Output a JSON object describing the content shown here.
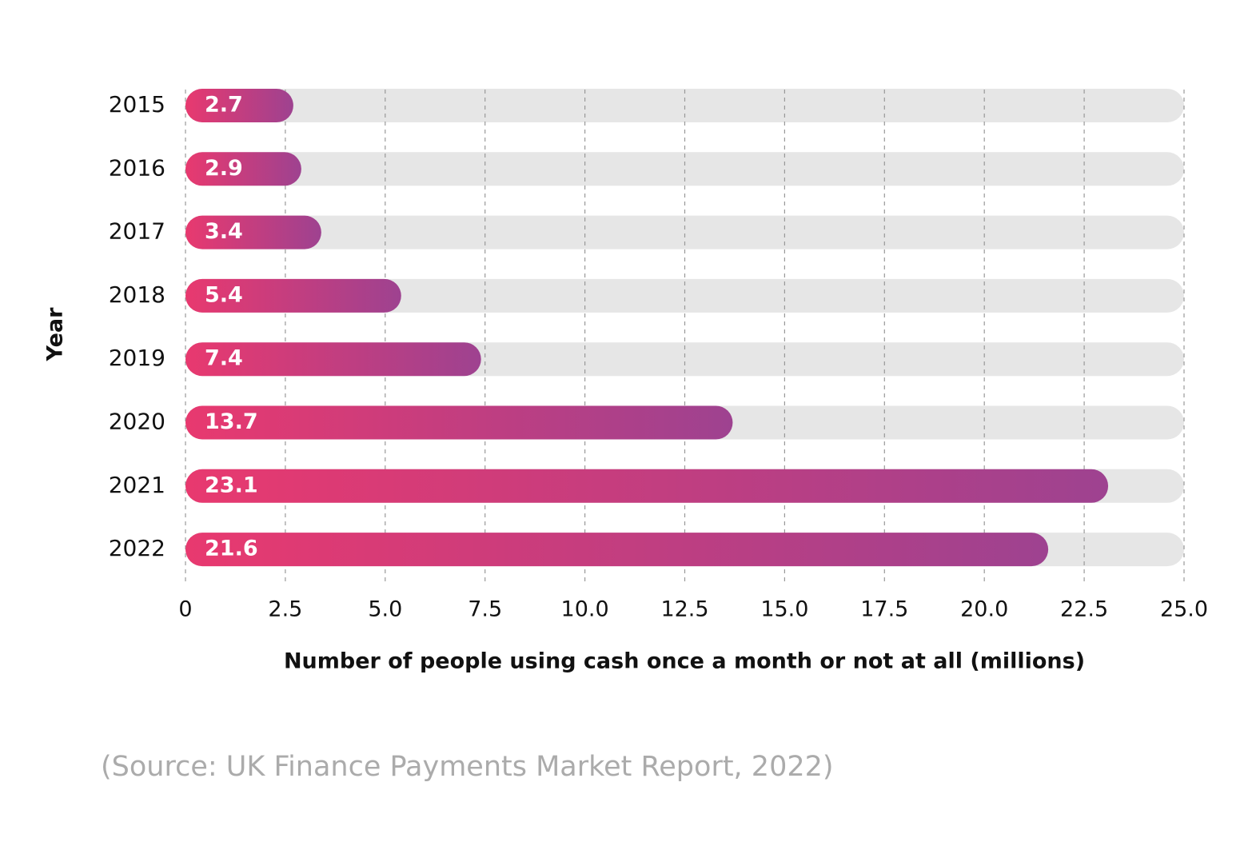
{
  "chart_data": {
    "type": "hbar",
    "y_label": "Year",
    "x_label": "Number of people using cash once a month or not at all (millions)",
    "source": "(Source: UK Finance Payments Market Report, 2022)",
    "categories": [
      "2015",
      "2016",
      "2017",
      "2018",
      "2019",
      "2020",
      "2021",
      "2022"
    ],
    "values": [
      2.7,
      2.9,
      3.4,
      5.4,
      7.4,
      13.7,
      23.1,
      21.6
    ],
    "colors": [
      "#e8396f",
      "#9e4290"
    ],
    "track_color": "#e6e6e6",
    "xlim": [
      0,
      25
    ],
    "xticks": [
      0,
      2.5,
      {
        "value": 5,
        "label": "5.0"
      },
      7.5,
      {
        "value": 10,
        "label": "10.0"
      },
      12.5,
      {
        "value": 15,
        "label": "15.0"
      },
      17.5,
      {
        "value": 20,
        "label": "20.0"
      },
      22.5,
      {
        "value": 25,
        "label": "25.0"
      }
    ],
    "grid": true
  }
}
